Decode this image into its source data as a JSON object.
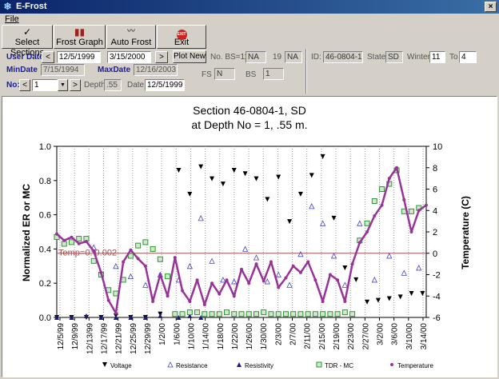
{
  "window": {
    "title": "E-Frost",
    "close_label": "×"
  },
  "menu": {
    "file": "File"
  },
  "toolbar": {
    "select_sections": "Select Sections",
    "frost_graph": "Frost Graph",
    "auto_frost": "Auto Frost",
    "exit": "Exit",
    "exit_icon_text": "EXIT"
  },
  "form": {
    "user_date_label": "User Date",
    "user_date_start": "12/5/1999",
    "user_date_end": "3/15/2000",
    "plot_new": "Plot New",
    "no_bs_label": "No. BS=11",
    "no_bs_value": "NA",
    "nineteen": "19",
    "nineteen_value": "NA",
    "id_label": "ID:",
    "id_value": "46-0804-1",
    "state_label": "State",
    "state_value": "SD",
    "winter_label": "Winter",
    "winter_value": "11",
    "to_label": "To",
    "to_value": "4",
    "min_date_label": "MinDate",
    "min_date_value": "7/15/1994",
    "max_date_label": "MaxDate",
    "max_date_value": "12/16/2003",
    "fs_label": "FS",
    "fs_value": "N",
    "bs_label": "BS",
    "bs_value": "1",
    "no_label": "No:",
    "no_value": "1",
    "depth_label": "Depth",
    "depth_value": ".55",
    "date_label": "Date",
    "date_value": "12/5/1999",
    "prev_arrow": "<",
    "next_arrow": ">",
    "dropdown_arrow": "▼"
  },
  "chart_data": {
    "type": "scatter",
    "title": "Section 46-0804-1, SD",
    "subtitle": "at Depth No = 1, .55 m.",
    "ylabel": "Normalized ER or MC",
    "y2label": "Temperature (C)",
    "ylim": [
      0,
      1
    ],
    "y2lim": [
      -6,
      10
    ],
    "yticks": [
      "0.0",
      "0.2",
      "0.4",
      "0.6",
      "0.8",
      "1.0"
    ],
    "y2ticks": [
      "-6",
      "-4",
      "-2",
      "0",
      "2",
      "4",
      "6",
      "8",
      "10"
    ],
    "x_ticks": [
      "12/5/99",
      "12/9/99",
      "12/13/99",
      "12/17/99",
      "12/21/99",
      "12/25/99",
      "12/29/99",
      "1/2/00",
      "1/6/00",
      "1/10/00",
      "1/14/00",
      "1/18/00",
      "1/22/00",
      "1/26/00",
      "1/30/00",
      "2/3/00",
      "2/7/00",
      "2/11/00",
      "2/15/00",
      "2/19/00",
      "2/23/00",
      "2/27/00",
      "3/2/00",
      "3/6/00",
      "3/10/00",
      "3/14/00"
    ],
    "x_range_days": [
      0,
      100
    ],
    "annotation": {
      "text": "Temp=0: 0.002",
      "value": 0.38
    },
    "legend": {
      "placement": "bottom",
      "entries": [
        "Voltage",
        "Resistance",
        "Resistivity",
        "TDR - MC",
        "Temperature"
      ],
      "colors": [
        "#000000",
        "#4444cc",
        "#1a1a80",
        "#2a9a2a",
        "#993399"
      ]
    },
    "series": [
      {
        "name": "Temperature",
        "x": [
          0,
          2,
          4,
          6,
          8,
          10,
          12,
          14,
          16,
          18,
          20,
          22,
          24,
          26,
          28,
          30,
          32,
          34,
          36,
          38,
          40,
          42,
          44,
          46,
          48,
          50,
          52,
          54,
          56,
          58,
          60,
          62,
          64,
          66,
          68,
          70,
          72,
          74,
          76,
          78,
          80,
          82,
          84,
          86,
          88,
          90,
          92,
          94,
          96,
          98,
          100
        ],
        "y": [
          1.8,
          1.2,
          1.5,
          0.9,
          1.1,
          0.2,
          -1.8,
          -4.4,
          -5.6,
          -0.8,
          0.3,
          -0.5,
          -1.2,
          -4.5,
          -2.0,
          -4.0,
          -0.4,
          -3.5,
          -4.5,
          -2.5,
          -4.8,
          -2.8,
          -3.8,
          -2.5,
          -4.0,
          -1.5,
          -2.8,
          -1.0,
          -2.6,
          -0.8,
          -3.2,
          -2.3,
          -1.2,
          -1.8,
          -0.8,
          -2.5,
          -4.5,
          -2.0,
          -2.5,
          -4.5,
          -1.0,
          1.0,
          2.0,
          3.5,
          4.5,
          7.0,
          8.0,
          5.0,
          2.0,
          4.0,
          4.5
        ]
      },
      {
        "name": "TDR - MC",
        "x": [
          0,
          2,
          4,
          6,
          8,
          10,
          12,
          14,
          16,
          18,
          20,
          22,
          24,
          26,
          28,
          30,
          32,
          34,
          36,
          38,
          40,
          42,
          44,
          46,
          48,
          50,
          52,
          54,
          56,
          58,
          60,
          62,
          64,
          66,
          68,
          70,
          72,
          74,
          76,
          78,
          80,
          82,
          84,
          86,
          88,
          90,
          92,
          94,
          96,
          98
        ],
        "y": [
          0.47,
          0.43,
          0.44,
          0.46,
          0.46,
          0.33,
          0.25,
          0.16,
          0.14,
          0.22,
          0.36,
          0.42,
          0.44,
          0.4,
          0.34,
          0.24,
          0.02,
          0.02,
          0.03,
          0.03,
          0.02,
          0.02,
          0.02,
          0.03,
          0.02,
          0.02,
          0.02,
          0.02,
          0.03,
          0.02,
          0.02,
          0.02,
          0.02,
          0.02,
          0.02,
          0.02,
          0.02,
          0.02,
          0.02,
          0.03,
          0.02,
          0.45,
          0.55,
          0.68,
          0.75,
          0.78,
          0.86,
          0.62,
          0.62,
          0.64
        ]
      },
      {
        "name": "Voltage",
        "x": [
          0,
          4,
          8,
          12,
          16,
          20,
          24,
          28,
          33,
          36,
          39,
          42,
          45,
          48,
          51,
          54,
          57,
          60,
          63,
          66,
          69,
          72,
          75,
          78,
          81,
          84,
          87,
          90,
          93,
          96,
          99
        ],
        "y": [
          0,
          0,
          0,
          0,
          0.01,
          0,
          0,
          0.02,
          0.86,
          0.72,
          0.88,
          0.81,
          0.78,
          0.86,
          0.84,
          0.81,
          0.69,
          0.82,
          0.56,
          0.72,
          0.83,
          0.94,
          0.58,
          0.29,
          0.22,
          0.09,
          0.1,
          0.11,
          0.12,
          0.14,
          0.14
        ]
      },
      {
        "name": "Resistance",
        "x": [
          6,
          10,
          16,
          20,
          24,
          28,
          33,
          36,
          39,
          42,
          45,
          48,
          51,
          54,
          57,
          60,
          63,
          66,
          69,
          72,
          75,
          78,
          82,
          86,
          90,
          94,
          98
        ],
        "y": [
          0.46,
          0.41,
          0.3,
          0.24,
          0.19,
          0.25,
          0.22,
          0.3,
          0.58,
          0.33,
          0.22,
          0.21,
          0.4,
          0.35,
          0.21,
          0.25,
          0.19,
          0.37,
          0.65,
          0.55,
          0.36,
          0.19,
          0.55,
          0.22,
          0.36,
          0.26,
          0.29
        ]
      },
      {
        "name": "Resistivity",
        "x": [
          0,
          4,
          8,
          12,
          16,
          20,
          24,
          28,
          33,
          36,
          39
        ],
        "y": [
          0,
          0,
          0.01,
          0,
          0,
          0,
          0,
          0.01,
          0,
          0.01,
          0
        ]
      }
    ]
  }
}
